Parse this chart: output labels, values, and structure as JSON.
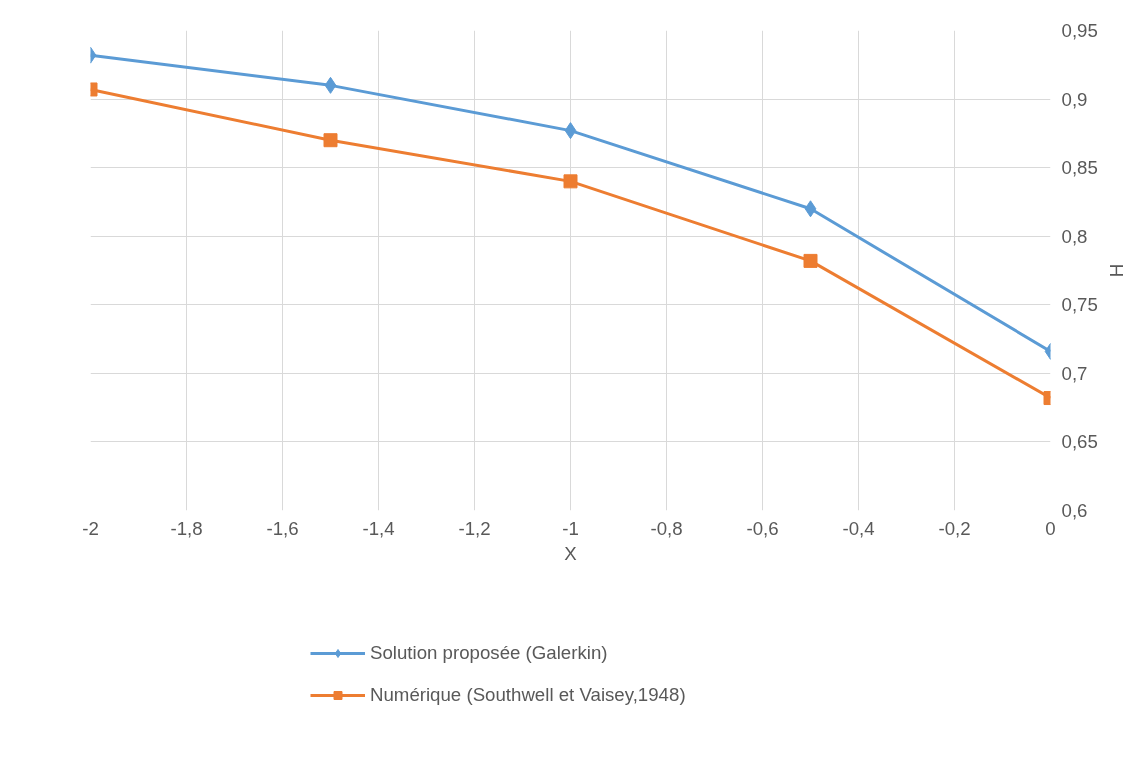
{
  "chart_data": {
    "type": "line",
    "xlabel": "X",
    "ylabel": "H",
    "x": [
      -2,
      -1.5,
      -1,
      -0.5,
      0
    ],
    "series": [
      {
        "name": "Solution proposée (Galerkin)",
        "color": "#5b9bd5",
        "marker": "diamond",
        "values": [
          0.932,
          0.91,
          0.877,
          0.82,
          0.716
        ]
      },
      {
        "name": "Numérique (Southwell et Vaisey,1948)",
        "color": "#ed7d31",
        "marker": "square",
        "values": [
          0.907,
          0.87,
          0.84,
          0.782,
          0.682
        ]
      }
    ],
    "xlim": [
      -2,
      0
    ],
    "xticks": [
      -2,
      {
        "value": -1.8,
        "label": "-1,8"
      },
      {
        "value": -1.6,
        "label": "-1,6"
      },
      {
        "value": -1.4,
        "label": "-1,4"
      },
      {
        "value": -1.2,
        "label": "-1,2"
      },
      -1,
      {
        "value": -0.8,
        "label": "-0,8"
      },
      {
        "value": -0.6,
        "label": "-0,6"
      },
      {
        "value": -0.4,
        "label": "-0,4"
      },
      {
        "value": -0.2,
        "label": "-0,2"
      },
      0
    ],
    "ylim": [
      0.6,
      0.95
    ],
    "yticks": [
      {
        "value": 0.6,
        "label": "0,6"
      },
      {
        "value": 0.65,
        "label": "0,65"
      },
      {
        "value": 0.7,
        "label": "0,7"
      },
      {
        "value": 0.75,
        "label": "0,75"
      },
      {
        "value": 0.8,
        "label": "0,8"
      },
      {
        "value": 0.85,
        "label": "0,85"
      },
      {
        "value": 0.9,
        "label": "0,9"
      },
      {
        "value": 0.95,
        "label": "0,95"
      }
    ],
    "grid": true,
    "legend": "bottom",
    "line_style": "solid"
  }
}
